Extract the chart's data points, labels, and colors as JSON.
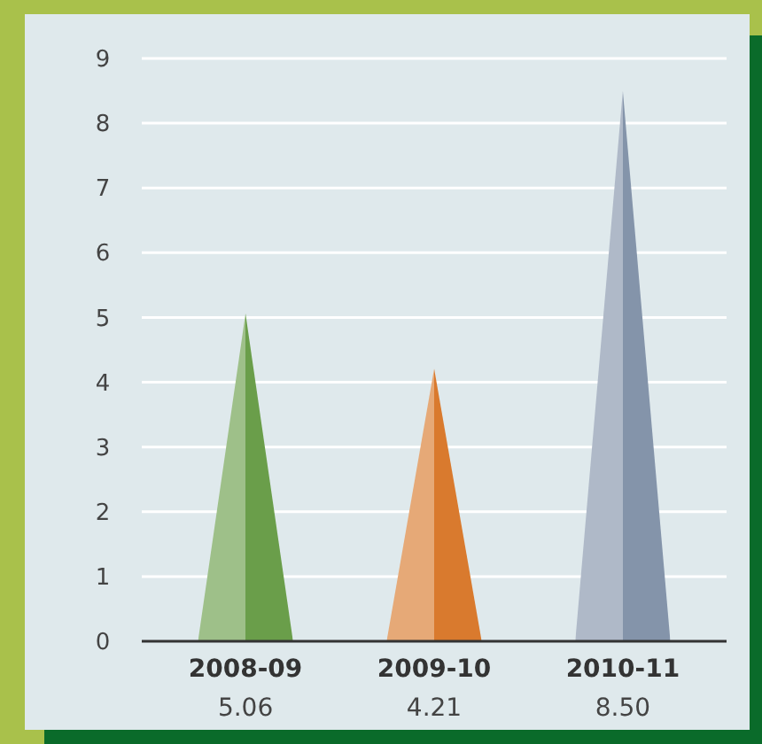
{
  "chart_data": {
    "type": "bar",
    "categories": [
      "2008-09",
      "2009-10",
      "2010-11"
    ],
    "values": [
      5.06,
      4.21,
      8.5
    ],
    "value_labels": [
      "5.06",
      "4.21",
      "8.50"
    ],
    "colors": [
      "#6a9e4a",
      "#d97a2e",
      "#8494aa"
    ],
    "ylim": [
      0,
      9
    ],
    "yticks": [
      0,
      1,
      2,
      3,
      4,
      5,
      6,
      7,
      8,
      9
    ],
    "grid": "y"
  }
}
